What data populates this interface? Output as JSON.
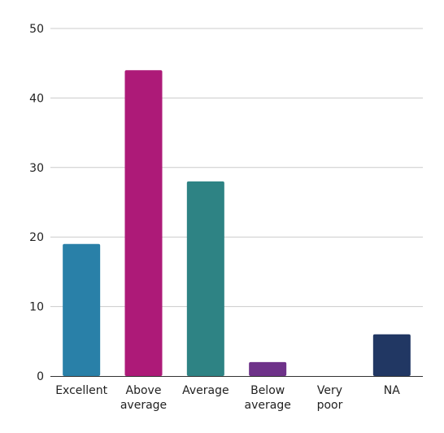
{
  "chart_data": {
    "type": "bar",
    "categories": [
      [
        "Excellent"
      ],
      [
        "Above",
        "average"
      ],
      [
        "Average"
      ],
      [
        "Below",
        "average"
      ],
      [
        "Very",
        "poor"
      ],
      [
        "NA"
      ]
    ],
    "values": [
      19,
      44,
      28,
      2,
      0,
      6
    ],
    "colors": [
      "#2980a8",
      "#ad1a78",
      "#2e8384",
      "#6e3289",
      "#888888",
      "#213763"
    ],
    "ylim": [
      0,
      50
    ],
    "yticks": [
      0,
      10,
      20,
      30,
      40,
      50
    ],
    "grid": true,
    "title": "",
    "xlabel": "",
    "ylabel": ""
  }
}
